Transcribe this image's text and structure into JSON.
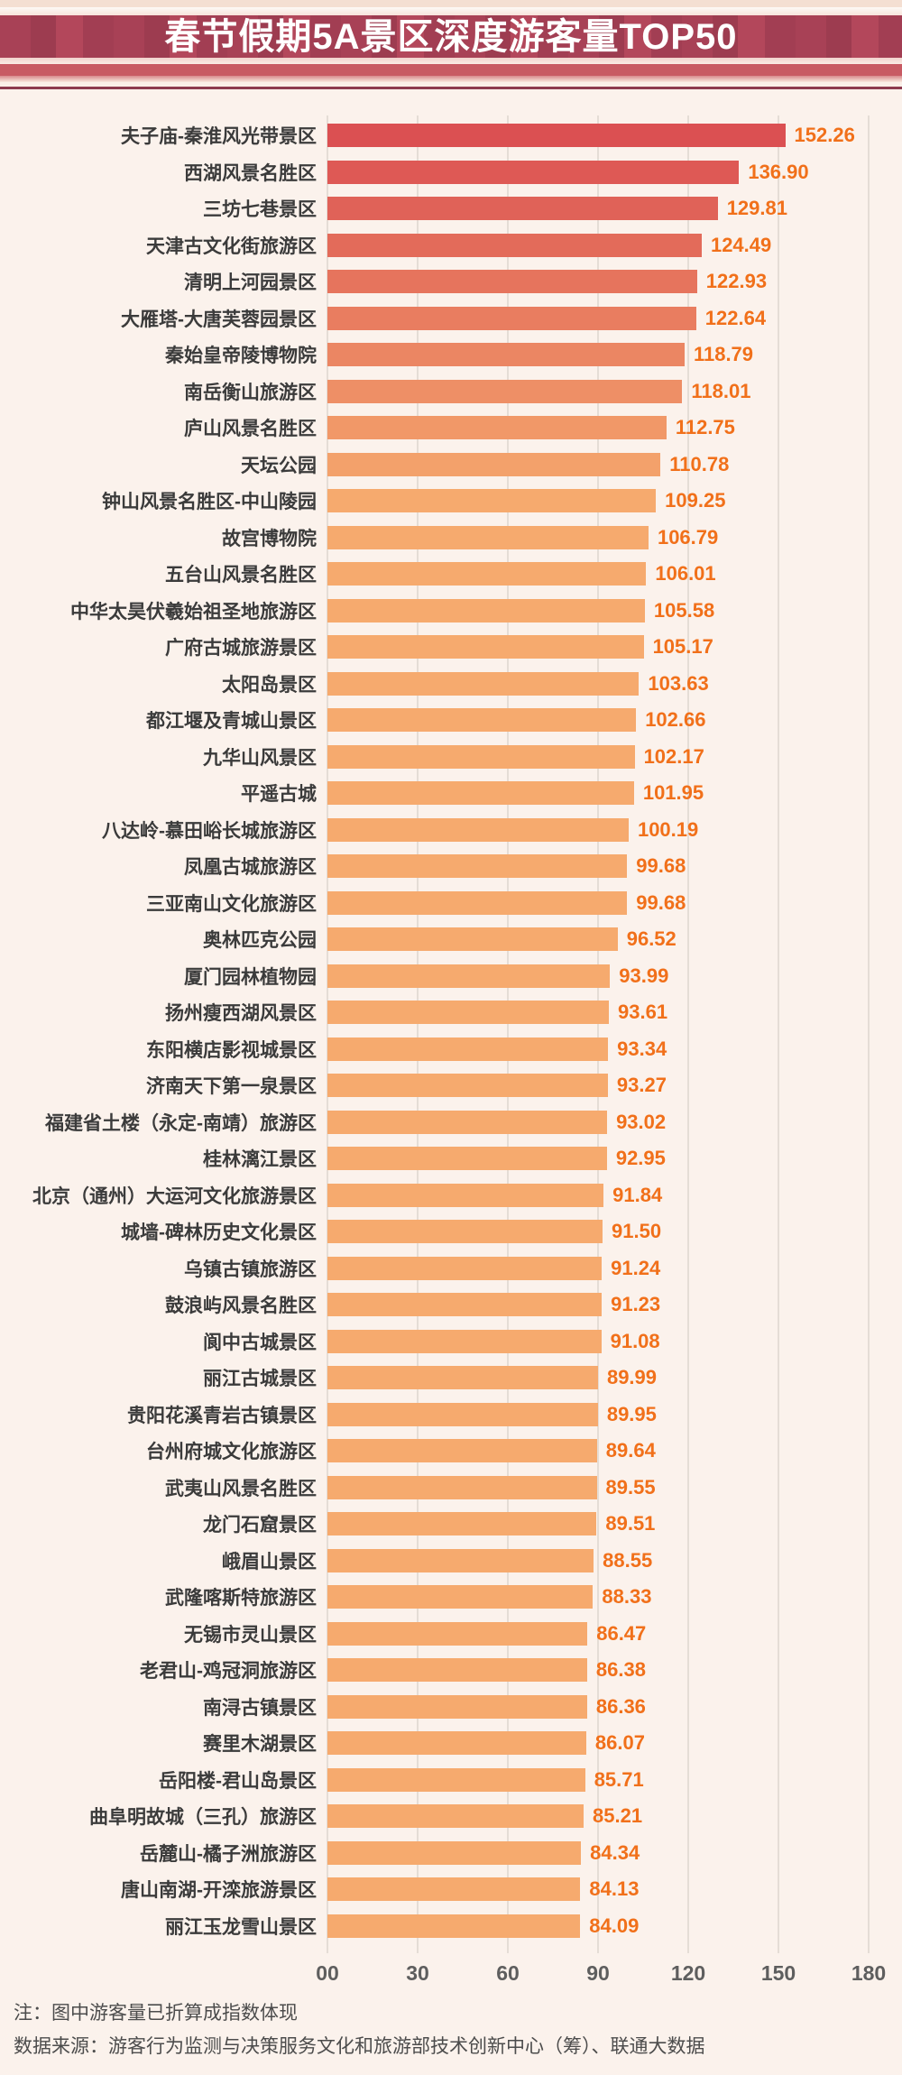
{
  "header": {
    "title": "春节假期5A景区深度游客量TOP50"
  },
  "colors": {
    "background": "#FBF2EC",
    "banner_red": "#A84156",
    "banner_sub_red": "#C85A63",
    "banner_dark_line": "#8C3A4E",
    "bar_color_top": "#DB5052",
    "bar_color_bottom": "#F6AA6E",
    "value_text": "#F1701A",
    "label_text": "#3B3B3B",
    "axis_text": "#5E5E5E",
    "gridline": "#E5DDD6",
    "note_text": "#4C4C4C"
  },
  "chart_data": {
    "type": "bar",
    "orientation": "horizontal",
    "title": "春节假期5A景区深度游客量TOP50",
    "xlabel": "",
    "ylabel": "",
    "xlim": [
      0,
      180
    ],
    "x_ticks": [
      0,
      30,
      60,
      90,
      120,
      150,
      180
    ],
    "x_tick_labels": [
      "00",
      "30",
      "60",
      "90",
      "120",
      "150",
      "180"
    ],
    "grid": true,
    "value_labels": true,
    "categories": [
      "夫子庙-秦淮风光带景区",
      "西湖风景名胜区",
      "三坊七巷景区",
      "天津古文化街旅游区",
      "清明上河园景区",
      "大雁塔-大唐芙蓉园景区",
      "秦始皇帝陵博物院",
      "南岳衡山旅游区",
      "庐山风景名胜区",
      "天坛公园",
      "钟山风景名胜区-中山陵园",
      "故宫博物院",
      "五台山风景名胜区",
      "中华太昊伏羲始祖圣地旅游区",
      "广府古城旅游景区",
      "太阳岛景区",
      "都江堰及青城山景区",
      "九华山风景区",
      "平遥古城",
      "八达岭-慕田峪长城旅游区",
      "凤凰古城旅游区",
      "三亚南山文化旅游区",
      "奥林匹克公园",
      "厦门园林植物园",
      "扬州瘦西湖风景区",
      "东阳横店影视城景区",
      "济南天下第一泉景区",
      "福建省土楼（永定-南靖）旅游区",
      "桂林漓江景区",
      "北京（通州）大运河文化旅游景区",
      "城墙-碑林历史文化景区",
      "乌镇古镇旅游区",
      "鼓浪屿风景名胜区",
      "阆中古城景区",
      "丽江古城景区",
      "贵阳花溪青岩古镇景区",
      "台州府城文化旅游区",
      "武夷山风景名胜区",
      "龙门石窟景区",
      "峨眉山景区",
      "武隆喀斯特旅游区",
      "无锡市灵山景区",
      "老君山-鸡冠洞旅游区",
      "南浔古镇景区",
      "赛里木湖景区",
      "岳阳楼-君山岛景区",
      "曲阜明故城（三孔）旅游区",
      "岳麓山-橘子洲旅游区",
      "唐山南湖-开滦旅游景区",
      "丽江玉龙雪山景区"
    ],
    "values": [
      152.26,
      136.9,
      129.81,
      124.49,
      122.93,
      122.64,
      118.79,
      118.01,
      112.75,
      110.78,
      109.25,
      106.79,
      106.01,
      105.58,
      105.17,
      103.63,
      102.66,
      102.17,
      101.95,
      100.19,
      99.68,
      99.68,
      96.52,
      93.99,
      93.61,
      93.34,
      93.27,
      93.02,
      92.95,
      91.84,
      91.5,
      91.24,
      91.23,
      91.08,
      89.99,
      89.95,
      89.64,
      89.55,
      89.51,
      88.55,
      88.33,
      86.47,
      86.38,
      86.36,
      86.07,
      85.71,
      85.21,
      84.34,
      84.13,
      84.09
    ]
  },
  "footer": {
    "note": "注：图中游客量已折算成指数体现",
    "source": "数据来源：游客行为监测与决策服务文化和旅游部技术创新中心（筹）、联通大数据"
  }
}
